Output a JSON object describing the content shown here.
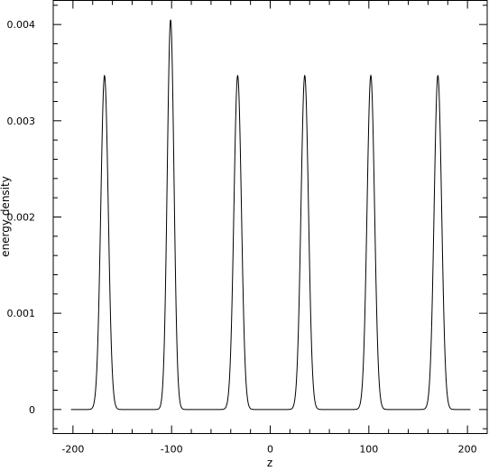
{
  "chart_data": {
    "type": "line",
    "title": "",
    "xlabel": "z",
    "ylabel": "energy density",
    "xlim": [
      -220,
      220
    ],
    "ylim": [
      -0.00025,
      0.00425
    ],
    "xticks": [
      -200,
      -100,
      0,
      100,
      200
    ],
    "xtick_labels": [
      "-200",
      "-100",
      "0",
      "100",
      "200"
    ],
    "yticks": [
      0,
      0.001,
      0.002,
      0.003,
      0.004
    ],
    "ytick_labels": [
      "0",
      "0.001",
      "0.002",
      "0.003",
      "0.004"
    ],
    "grid": false,
    "legend": "none",
    "line_color": "#000000",
    "series": [
      {
        "x_range": [
          -202,
          203
        ],
        "baseline": 0,
        "peaks": [
          {
            "center": -168,
            "height": 0.00347,
            "width": 3.8
          },
          {
            "center": -101,
            "height": 0.00405,
            "width": 3.4
          },
          {
            "center": -33,
            "height": 0.00347,
            "width": 3.8
          },
          {
            "center": 35,
            "height": 0.00347,
            "width": 3.8
          },
          {
            "center": 102,
            "height": 0.00347,
            "width": 3.8
          },
          {
            "center": 170,
            "height": 0.00347,
            "width": 3.8
          }
        ]
      }
    ]
  }
}
